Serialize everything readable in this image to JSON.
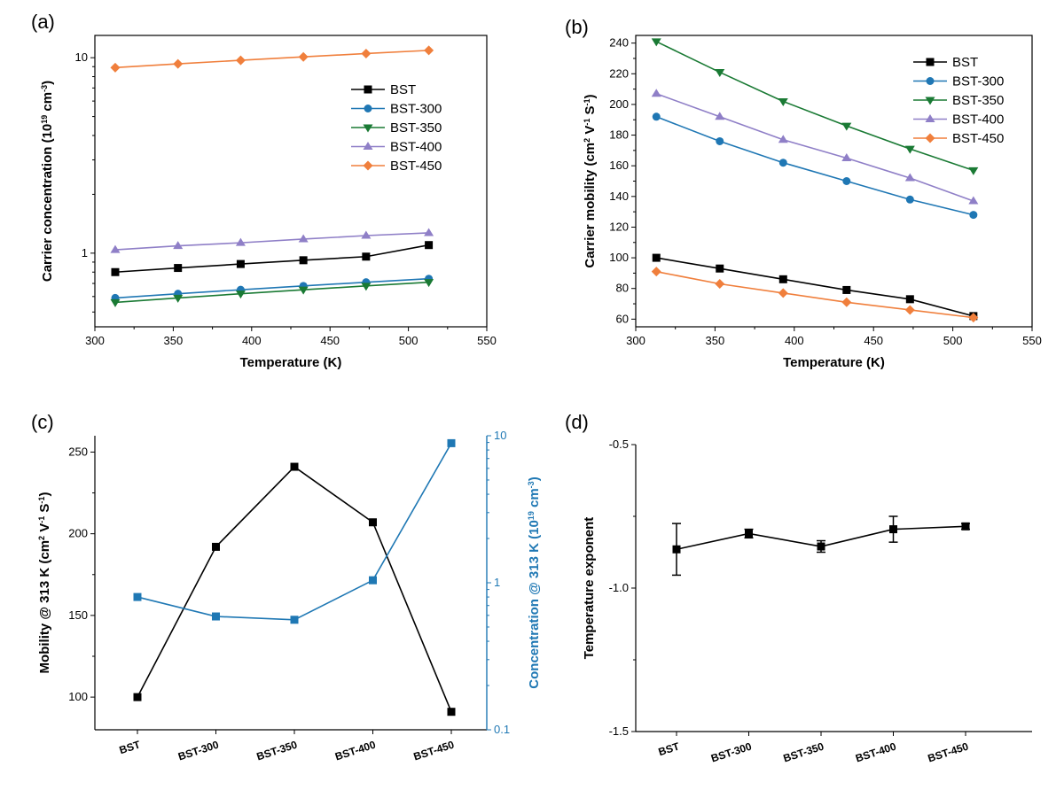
{
  "chart_data": [
    {
      "panel_label": "(a)",
      "type": "line",
      "xlabel": "Temperature (K)",
      "ylabel": "Carrier concentration (10",
      "ylabel_sup": "19",
      "ylabel_unit": " cm",
      "ylabel_sup2": "-3",
      "ylabel_end": ")",
      "yscale": "log",
      "xlim": [
        300,
        550
      ],
      "ylim": [
        0.42,
        13
      ],
      "xticks": [
        "300",
        "350",
        "400",
        "450",
        "500",
        "550"
      ],
      "yticks": [
        "1",
        "10"
      ],
      "legend_position": "top-right",
      "x": [
        313,
        353,
        393,
        433,
        473,
        513
      ],
      "series": [
        {
          "name": "BST",
          "color": "#000000",
          "marker": "square",
          "values": [
            0.8,
            0.84,
            0.88,
            0.92,
            0.96,
            1.1
          ]
        },
        {
          "name": "BST-300",
          "color": "#1f77b4",
          "marker": "circle",
          "values": [
            0.59,
            0.62,
            0.65,
            0.68,
            0.71,
            0.74
          ]
        },
        {
          "name": "BST-350",
          "color": "#1a7a34",
          "marker": "triangle-down",
          "values": [
            0.56,
            0.59,
            0.62,
            0.65,
            0.68,
            0.71
          ]
        },
        {
          "name": "BST-400",
          "color": "#8f7fc7",
          "marker": "triangle-up",
          "values": [
            1.04,
            1.09,
            1.13,
            1.18,
            1.23,
            1.27
          ]
        },
        {
          "name": "BST-450",
          "color": "#f07f3c",
          "marker": "diamond",
          "values": [
            8.9,
            9.3,
            9.7,
            10.1,
            10.5,
            10.9
          ]
        }
      ]
    },
    {
      "panel_label": "(b)",
      "type": "line",
      "xlabel": "Temperature (K)",
      "ylabel": "Carrier mobility (cm",
      "ylabel_sup": "2",
      "ylabel_unit": " V",
      "ylabel_sup2": "-1",
      "ylabel_mid": " S",
      "ylabel_sup3": "-1",
      "ylabel_end": ")",
      "xlim": [
        300,
        550
      ],
      "ylim": [
        55,
        245
      ],
      "xticks": [
        "300",
        "350",
        "400",
        "450",
        "500",
        "550"
      ],
      "yticks": [
        "60",
        "80",
        "100",
        "120",
        "140",
        "160",
        "180",
        "200",
        "220",
        "240"
      ],
      "legend_position": "top-right",
      "x": [
        313,
        353,
        393,
        433,
        473,
        513
      ],
      "series": [
        {
          "name": "BST",
          "color": "#000000",
          "marker": "square",
          "values": [
            100,
            93,
            86,
            79,
            73,
            62
          ]
        },
        {
          "name": "BST-300",
          "color": "#1f77b4",
          "marker": "circle",
          "values": [
            192,
            176,
            162,
            150,
            138,
            128
          ]
        },
        {
          "name": "BST-350",
          "color": "#1a7a34",
          "marker": "triangle-down",
          "values": [
            241,
            221,
            202,
            186,
            171,
            157
          ]
        },
        {
          "name": "BST-400",
          "color": "#8f7fc7",
          "marker": "triangle-up",
          "values": [
            207,
            192,
            177,
            165,
            152,
            137
          ]
        },
        {
          "name": "BST-450",
          "color": "#f07f3c",
          "marker": "diamond",
          "values": [
            91,
            83,
            77,
            71,
            66,
            61
          ]
        }
      ]
    },
    {
      "panel_label": "(c)",
      "type": "line",
      "categories": [
        "BST",
        "BST-300",
        "BST-350",
        "BST-400",
        "BST-450"
      ],
      "ylabel_left": "Mobility @ 313 K (cm",
      "ylabel_left_sup": "2",
      "ylabel_left_unit": " V",
      "ylabel_left_sup2": "-1",
      "ylabel_left_mid": " S",
      "ylabel_left_sup3": "-1",
      "ylabel_left_end": ")",
      "ylabel_right": "Concentration @ 313 K (10",
      "ylabel_right_sup": "19",
      "ylabel_right_unit": " cm",
      "ylabel_right_sup2": "-3",
      "ylabel_right_end": ")",
      "ylim_left": [
        80,
        260
      ],
      "yticks_left": [
        "100",
        "150",
        "200",
        "250"
      ],
      "ylim_right": [
        0.1,
        10
      ],
      "yscale_right": "log",
      "yticks_right": [
        "0.1",
        "1",
        "10"
      ],
      "series": [
        {
          "name": "Mobility",
          "axis": "left",
          "color": "#000000",
          "values": [
            100,
            192,
            241,
            207,
            91
          ]
        },
        {
          "name": "Concentration",
          "axis": "right",
          "color": "#1f78b4",
          "values": [
            0.8,
            0.59,
            0.56,
            1.04,
            8.9
          ]
        }
      ]
    },
    {
      "panel_label": "(d)",
      "type": "scatter",
      "categories": [
        "BST",
        "BST-300",
        "BST-350",
        "BST-400",
        "BST-450"
      ],
      "ylabel": "Temperature exponent",
      "ylim": [
        -1.5,
        -0.5
      ],
      "yticks": [
        "-0.5",
        "-1.0",
        "-1.5"
      ],
      "series": [
        {
          "name": "Temperature exponent",
          "color": "#000000",
          "values": [
            -0.865,
            -0.81,
            -0.855,
            -0.795,
            -0.785
          ],
          "errors": [
            0.09,
            0.015,
            0.02,
            0.045,
            0.01
          ]
        }
      ]
    }
  ]
}
